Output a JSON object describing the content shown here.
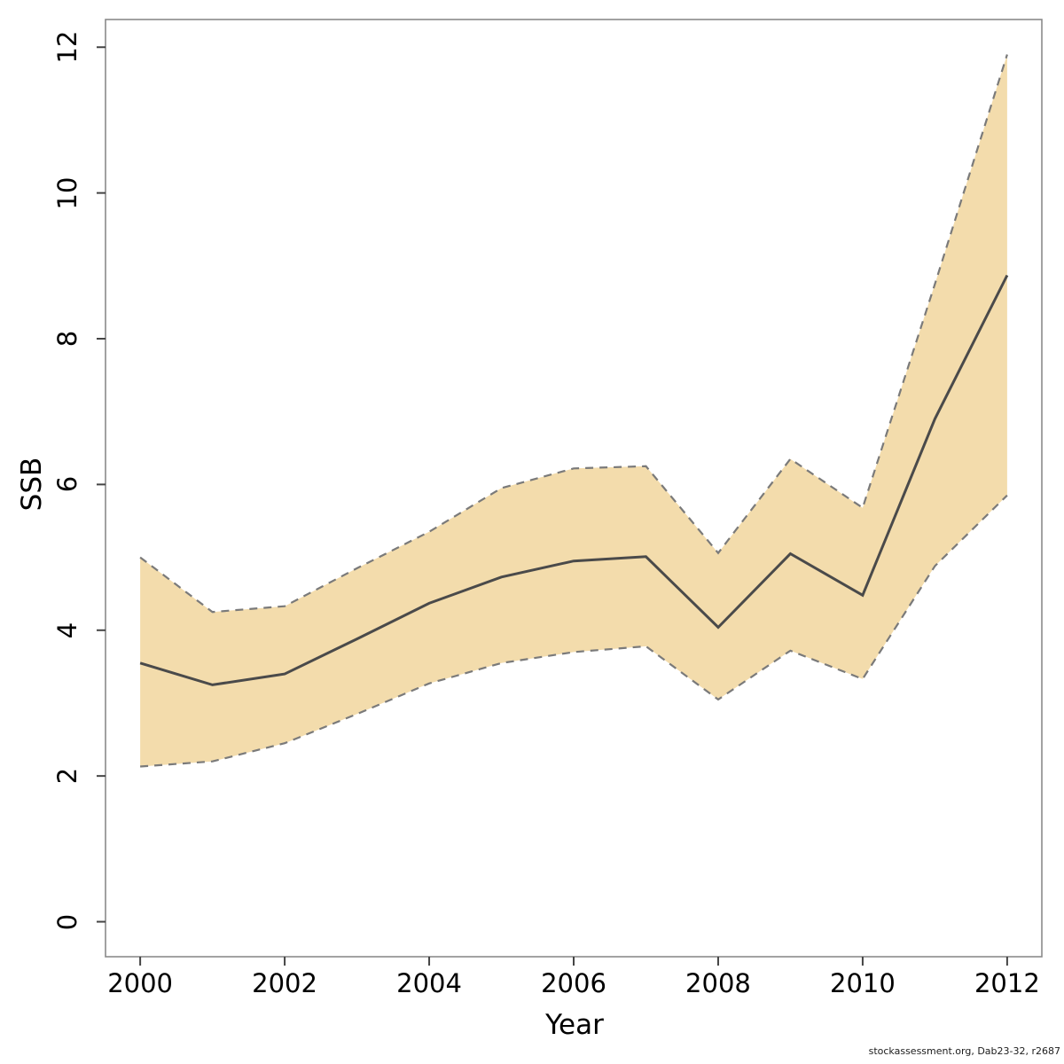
{
  "watermark": "stockassessment.org, Dab23-32, r2687",
  "chart_data": {
    "type": "line",
    "title": "",
    "xlabel": "Year",
    "ylabel": "SSB",
    "x": [
      2000,
      2001,
      2002,
      2003,
      2004,
      2005,
      2006,
      2007,
      2008,
      2009,
      2010,
      2011,
      2012
    ],
    "series": [
      {
        "name": "ssb-estimate",
        "style": "solid",
        "values": [
          3.55,
          3.25,
          3.4,
          3.88,
          4.37,
          4.73,
          4.95,
          5.01,
          4.04,
          5.05,
          4.48,
          6.9,
          8.87
        ]
      },
      {
        "name": "ci-upper",
        "style": "dashed",
        "values": [
          5.0,
          4.25,
          4.33,
          4.85,
          5.35,
          5.95,
          6.22,
          6.25,
          5.06,
          6.35,
          5.68,
          8.75,
          11.9
        ]
      },
      {
        "name": "ci-lower",
        "style": "dashed",
        "values": [
          2.13,
          2.2,
          2.45,
          2.85,
          3.27,
          3.55,
          3.7,
          3.78,
          3.05,
          3.72,
          3.33,
          4.88,
          5.85
        ]
      }
    ],
    "band": {
      "upper": "ci-upper",
      "lower": "ci-lower"
    },
    "x_ticks": [
      2000,
      2002,
      2004,
      2006,
      2008,
      2010,
      2012
    ],
    "y_ticks": [
      0,
      2,
      4,
      6,
      8,
      10,
      12
    ],
    "xlim": [
      1999.52,
      2012.48
    ],
    "ylim": [
      -0.48,
      12.38
    ],
    "grid": false,
    "legend": "none",
    "colors": {
      "band_fill": "#F3DCAC",
      "ci_line": "#7A7A7A",
      "estimate_line": "#4A4A4A",
      "tick": "#444444",
      "box": "#8A8A8A"
    }
  }
}
